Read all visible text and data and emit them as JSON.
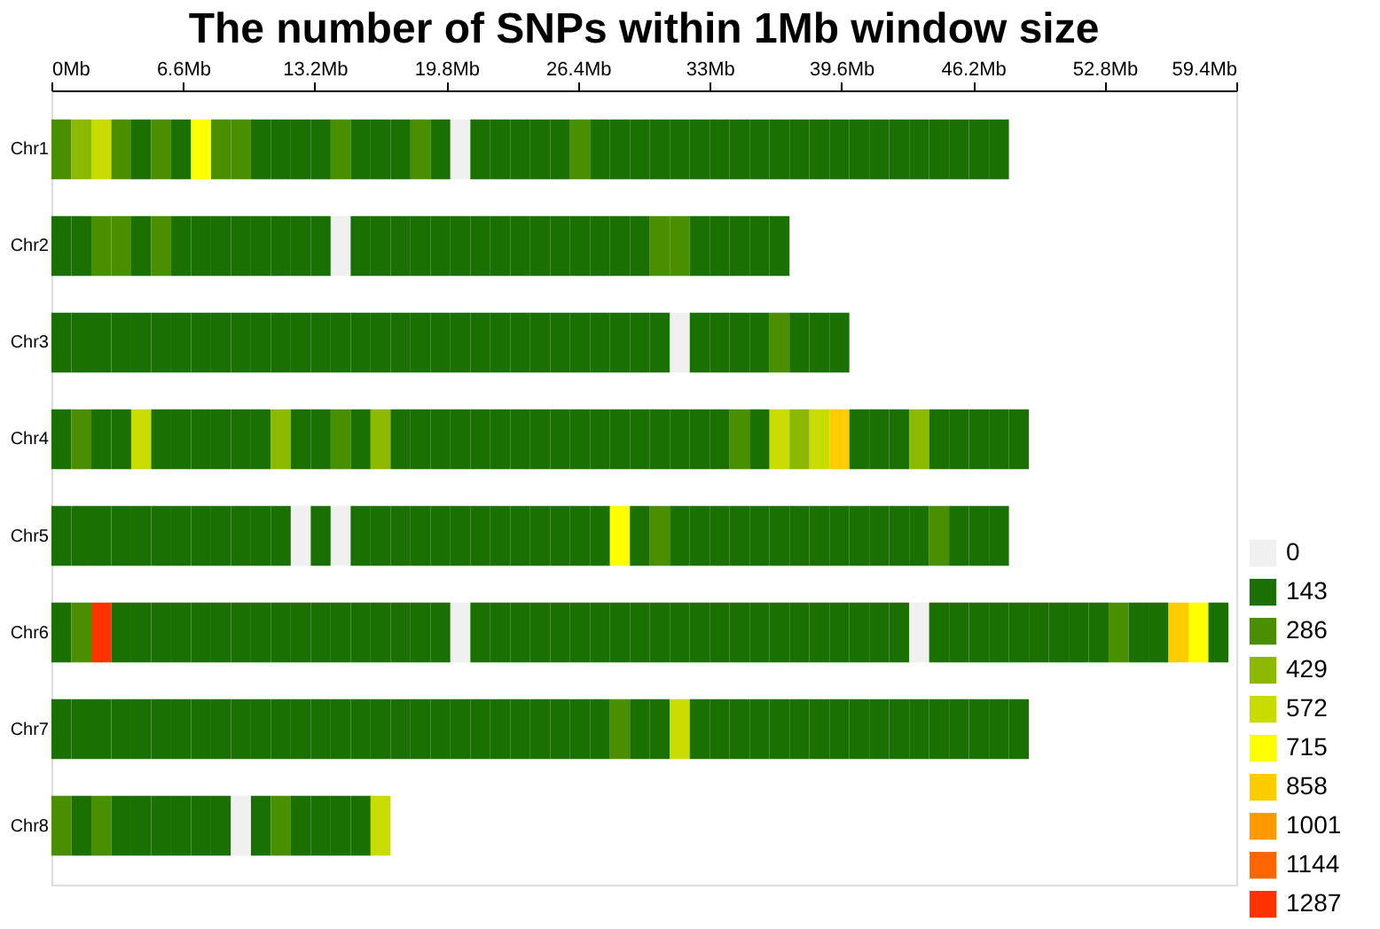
{
  "chart_data": {
    "type": "heatmap",
    "title": "The number of SNPs within 1Mb window size",
    "x": [
      0.5,
      1.5,
      2.5,
      3.5,
      4.5,
      5.5,
      6.5,
      7.5,
      8.5,
      9.5,
      10.5,
      11.5,
      12.5,
      13.5,
      14.5,
      15.5,
      16.5,
      17.5,
      18.5,
      19.5,
      20.5,
      21.5,
      22.5,
      23.5,
      24.5,
      25.5,
      26.5,
      27.5,
      28.5,
      29.5,
      30.5,
      31.5,
      32.5,
      33.5,
      34.5,
      35.5,
      36.5,
      37.5,
      38.5,
      39.5,
      40.5,
      41.5,
      42.5,
      43.5,
      44.5,
      45.5,
      46.5,
      47.5,
      48.5,
      49.5,
      50.5,
      51.5,
      52.5,
      53.5,
      54.5,
      55.5,
      56.5,
      57.5,
      58.5
    ],
    "xlim": [
      0,
      59.4
    ],
    "xticks": [
      {
        "value": 0,
        "label": "0Mb"
      },
      {
        "value": 6.6,
        "label": "6.6Mb"
      },
      {
        "value": 13.2,
        "label": "13.2Mb"
      },
      {
        "value": 19.8,
        "label": "19.8Mb"
      },
      {
        "value": 26.4,
        "label": "26.4Mb"
      },
      {
        "value": 33,
        "label": "33Mb"
      },
      {
        "value": 39.6,
        "label": "39.6Mb"
      },
      {
        "value": 46.2,
        "label": "46.2Mb"
      },
      {
        "value": 52.8,
        "label": "52.8Mb"
      },
      {
        "value": 59.4,
        "label": "59.4Mb"
      }
    ],
    "y_categories": [
      "Chr1",
      "Chr2",
      "Chr3",
      "Chr4",
      "Chr5",
      "Chr6",
      "Chr7",
      "Chr8"
    ],
    "cells": [
      [
        286,
        429,
        572,
        286,
        143,
        286,
        143,
        715,
        286,
        286,
        143,
        143,
        143,
        143,
        286,
        143,
        143,
        143,
        286,
        143,
        0,
        143,
        143,
        143,
        143,
        143,
        286,
        143,
        143,
        143,
        143,
        143,
        143,
        143,
        143,
        143,
        143,
        143,
        143,
        143,
        143,
        143,
        143,
        143,
        143,
        143,
        143,
        143,
        null,
        null,
        null,
        null,
        null,
        null,
        null,
        null,
        null,
        null,
        null
      ],
      [
        143,
        143,
        286,
        286,
        143,
        286,
        143,
        143,
        143,
        143,
        143,
        143,
        143,
        143,
        0,
        143,
        143,
        143,
        143,
        143,
        143,
        143,
        143,
        143,
        143,
        143,
        143,
        143,
        143,
        143,
        286,
        286,
        143,
        143,
        143,
        143,
        143,
        null,
        null,
        null,
        null,
        null,
        null,
        null,
        null,
        null,
        null,
        null,
        null,
        null,
        null,
        null,
        null,
        null,
        null,
        null,
        null,
        null,
        null
      ],
      [
        143,
        143,
        143,
        143,
        143,
        143,
        143,
        143,
        143,
        143,
        143,
        143,
        143,
        143,
        143,
        143,
        143,
        143,
        143,
        143,
        143,
        143,
        143,
        143,
        143,
        143,
        143,
        143,
        143,
        143,
        143,
        0,
        143,
        143,
        143,
        143,
        286,
        143,
        143,
        143,
        null,
        null,
        null,
        null,
        null,
        null,
        null,
        null,
        null,
        null,
        null,
        null,
        null,
        null,
        null,
        null,
        null,
        null,
        null
      ],
      [
        143,
        286,
        143,
        143,
        572,
        143,
        143,
        143,
        143,
        143,
        143,
        429,
        143,
        143,
        286,
        143,
        429,
        143,
        143,
        143,
        143,
        143,
        143,
        143,
        143,
        143,
        143,
        143,
        143,
        143,
        143,
        143,
        143,
        143,
        286,
        143,
        572,
        429,
        572,
        858,
        143,
        143,
        143,
        429,
        143,
        143,
        143,
        143,
        143,
        null,
        null,
        null,
        null,
        null,
        null,
        null,
        null,
        null,
        null
      ],
      [
        143,
        143,
        143,
        143,
        143,
        143,
        143,
        143,
        143,
        143,
        143,
        143,
        0,
        143,
        0,
        143,
        143,
        143,
        143,
        143,
        143,
        143,
        143,
        143,
        143,
        143,
        143,
        143,
        715,
        143,
        286,
        143,
        143,
        143,
        143,
        143,
        143,
        143,
        143,
        143,
        143,
        143,
        143,
        143,
        286,
        143,
        143,
        143,
        null,
        null,
        null,
        null,
        null,
        null,
        null,
        null,
        null,
        null,
        null
      ],
      [
        143,
        286,
        1287,
        143,
        143,
        143,
        143,
        143,
        143,
        143,
        143,
        143,
        143,
        143,
        143,
        143,
        143,
        143,
        143,
        143,
        0,
        143,
        143,
        143,
        143,
        143,
        143,
        143,
        143,
        143,
        143,
        143,
        143,
        143,
        143,
        143,
        143,
        143,
        143,
        143,
        143,
        143,
        143,
        0,
        143,
        143,
        143,
        143,
        143,
        143,
        143,
        143,
        143,
        286,
        143,
        143,
        858,
        715,
        143
      ],
      [
        143,
        143,
        143,
        143,
        143,
        143,
        143,
        143,
        143,
        143,
        143,
        143,
        143,
        143,
        143,
        143,
        143,
        143,
        143,
        143,
        143,
        143,
        143,
        143,
        143,
        143,
        143,
        143,
        286,
        143,
        143,
        572,
        143,
        143,
        143,
        143,
        143,
        143,
        143,
        143,
        143,
        143,
        143,
        143,
        143,
        143,
        143,
        143,
        143,
        null,
        null,
        null,
        null,
        null,
        null,
        null,
        null,
        null,
        null
      ],
      [
        286,
        143,
        286,
        143,
        143,
        143,
        143,
        143,
        143,
        0,
        143,
        286,
        143,
        143,
        143,
        143,
        572,
        null,
        null,
        null,
        null,
        null,
        null,
        null,
        null,
        null,
        null,
        null,
        null,
        null,
        null,
        null,
        null,
        null,
        null,
        null,
        null,
        null,
        null,
        null,
        null,
        null,
        null,
        null,
        null,
        null,
        null,
        null,
        null,
        null,
        null,
        null,
        null,
        null,
        null,
        null,
        null,
        null,
        null
      ]
    ],
    "cticks": [
      0,
      143,
      286,
      429,
      572,
      715,
      858,
      1001,
      1144,
      1287
    ],
    "colors": [
      "#f0f0f0",
      "#1a7000",
      "#4a8f00",
      "#8cb800",
      "#c8dc00",
      "#ffff00",
      "#ffcc00",
      "#ff9900",
      "#ff6600",
      "#ff3300"
    ]
  }
}
